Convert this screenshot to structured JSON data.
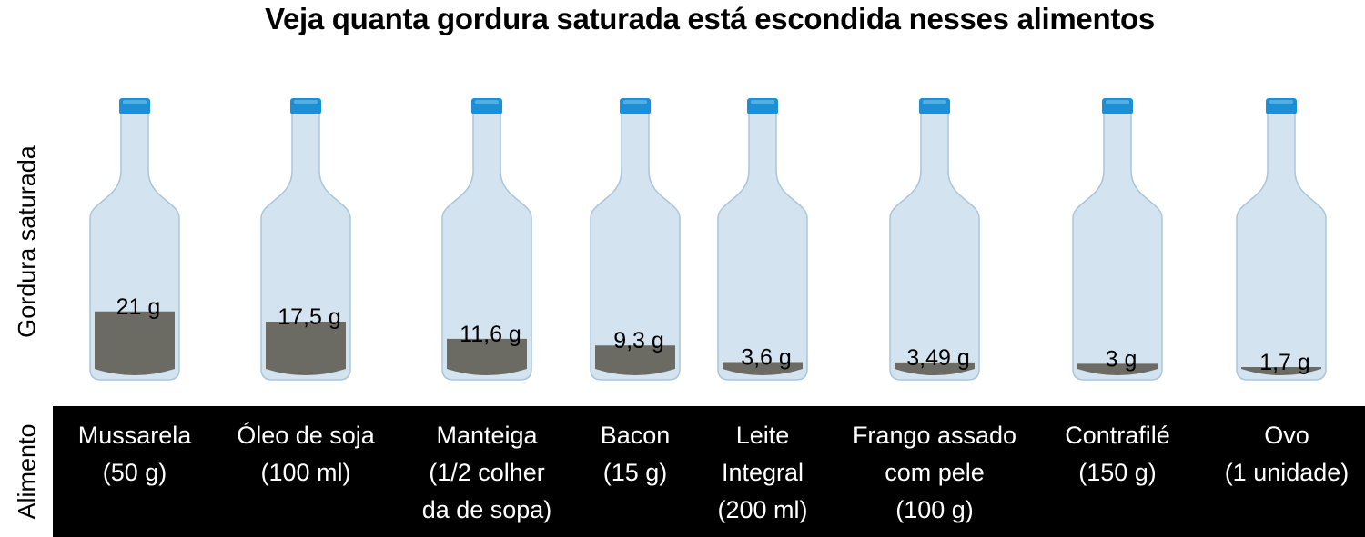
{
  "title": "Veja quanta gordura saturada está escondida nesses alimentos",
  "y_axis_label": "Gordura saturada",
  "row_label": "Alimento",
  "colors": {
    "bottle_fill": "#d3e3ef",
    "bottle_stroke": "#a9c6dc",
    "cap": "#1c8fd6",
    "fat": "#6b6a63",
    "band": "#000000",
    "band_text": "#ffffff"
  },
  "chart_data": {
    "type": "bar",
    "ylabel": "Gordura saturada",
    "categories": [
      "Mussarela\n(50 g)",
      "Óleo de soja\n(100 ml)",
      "Manteiga\n(1/2 colher\nda de sopa)",
      "Bacon\n(15 g)",
      "Leite\nIntegral\n(200 ml)",
      "Frango assado\ncom pele\n(100 g)",
      "Contrafilé\n(150 g)",
      "Ovo\n(1 unidade)"
    ],
    "values": [
      21,
      17.5,
      11.6,
      9.3,
      3.6,
      3.49,
      3,
      1.7
    ],
    "value_labels": [
      "21 g",
      "17,5 g",
      "11,6 g",
      "9,3 g",
      "3,6 g",
      "3,49 g",
      "3 g",
      "1,7 g"
    ],
    "unit": "g"
  }
}
